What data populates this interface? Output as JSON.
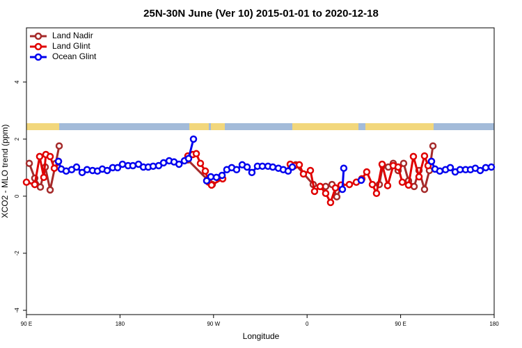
{
  "chart_data": {
    "type": "line",
    "title": "25N-30N June (Ver 10)   2015-01-01 to 2020-12-18",
    "x_label": "Longitude",
    "y_label": "XCO2 - MLO trend (ppm)",
    "xlim": [
      90,
      540
    ],
    "ylim": [
      -4.15,
      5.9
    ],
    "xticks": [
      {
        "value": 90,
        "label": "90 E"
      },
      180,
      {
        "value": 270,
        "label": "90 W"
      },
      {
        "value": 360,
        "label": "0"
      },
      {
        "value": 450,
        "label": "90 E"
      },
      {
        "value": 540,
        "label": "180"
      }
    ],
    "yticks": [
      -4,
      -2,
      0,
      2,
      4
    ],
    "legend": "top-left",
    "series": [
      {
        "name": "Land Nadir",
        "color": "#a52a2a",
        "x": [
          92.7,
          98.0,
          103.4,
          108.1,
          112.8,
          118.2,
          121.5,
          null,
          245.3,
          268.8,
          null,
          344.5,
          349.1,
          365.9,
          372.6,
          377.9,
          384.0,
          388.6,
          392.7,
          null,
          429.5,
          432.8,
          438.2,
          442.9,
          447.6,
          452.9,
          457.6,
          463.0,
          467.7,
          473.0,
          477.7,
          481.1
        ],
        "values": [
          1.15,
          0.63,
          0.32,
          1.02,
          0.22,
          1.15,
          1.76,
          null,
          1.27,
          0.41,
          null,
          1.02,
          1.1,
          0.41,
          0.34,
          0.34,
          0.41,
          -0.02,
          0.29,
          null,
          0.41,
          1.07,
          1.02,
          1.15,
          0.9,
          1.15,
          0.54,
          0.34,
          0.9,
          0.24,
          0.9,
          1.76
        ]
      },
      {
        "name": "Land Glint",
        "color": "#e00000",
        "x": [
          90.0,
          98.0,
          102.7,
          106.7,
          108.7,
          112.8,
          116.8,
          120.8,
          null,
          245.3,
          250.0,
          253.4,
          257.4,
          262.1,
          265.4,
          268.1,
          278.8,
          null,
          343.8,
          347.8,
          352.5,
          356.5,
          363.2,
          367.2,
          372.6,
          377.9,
          382.6,
          387.3,
          392.7,
          400.7,
          407.4,
          412.7,
          417.4,
          422.8,
          426.8,
          432.2,
          437.5,
          442.9,
          447.6,
          451.6,
          457.6,
          462.3,
          467.7,
          473.0,
          476.4,
          479.7
        ],
        "values": [
          0.49,
          0.41,
          1.39,
          0.66,
          1.46,
          1.39,
          0.98,
          1.22,
          null,
          1.41,
          1.46,
          1.49,
          1.15,
          0.88,
          0.49,
          0.39,
          0.61,
          null,
          1.12,
          1.07,
          1.1,
          0.78,
          0.9,
          0.17,
          0.34,
          0.1,
          -0.22,
          0.29,
          0.39,
          0.41,
          0.49,
          0.61,
          0.85,
          0.41,
          0.1,
          1.12,
          0.37,
          1.07,
          1.02,
          0.49,
          0.39,
          1.39,
          0.68,
          1.41,
          1.07,
          1.22
        ]
      },
      {
        "name": "Ocean Glint",
        "color": "#0000ee",
        "x": [
          120.8,
          123.5,
          128.2,
          133.5,
          138.2,
          143.6,
          148.3,
          153.6,
          158.3,
          163.0,
          167.7,
          173.0,
          177.7,
          182.4,
          187.8,
          192.4,
          197.8,
          202.5,
          207.2,
          211.9,
          217.2,
          221.9,
          227.3,
          232.0,
          236.8,
          242.0,
          246.0,
          250.7,
          null,
          263.4,
          267.4,
          272.8,
          278.2,
          282.8,
          287.5,
          292.2,
          297.6,
          302.3,
          306.9,
          312.3,
          317.0,
          322.4,
          327.0,
          332.4,
          337.1,
          341.8,
          345.8,
          null,
          394.0,
          395.3,
          null,
          412.1,
          null,
          479.7,
          483.1,
          487.7,
          493.2,
          497.8,
          502.5,
          507.2,
          512.5,
          517.2,
          521.9,
          526.6,
          531.9,
          537.3
        ],
        "values": [
          1.22,
          0.95,
          0.88,
          0.93,
          1.02,
          0.83,
          0.93,
          0.9,
          0.88,
          0.95,
          0.9,
          1.0,
          1.0,
          1.12,
          1.07,
          1.07,
          1.12,
          1.02,
          1.02,
          1.05,
          1.07,
          1.17,
          1.24,
          1.2,
          1.12,
          1.24,
          1.32,
          2.0,
          null,
          0.54,
          0.68,
          0.66,
          0.73,
          0.93,
          1.0,
          0.93,
          1.1,
          1.02,
          0.83,
          1.05,
          1.05,
          1.05,
          1.02,
          0.98,
          0.93,
          0.88,
          1.02,
          null,
          0.24,
          0.98,
          null,
          0.56,
          null,
          1.22,
          0.95,
          0.88,
          0.93,
          1.0,
          0.85,
          0.93,
          0.93,
          0.93,
          0.98,
          0.9,
          1.0,
          1.02
        ]
      }
    ]
  }
}
